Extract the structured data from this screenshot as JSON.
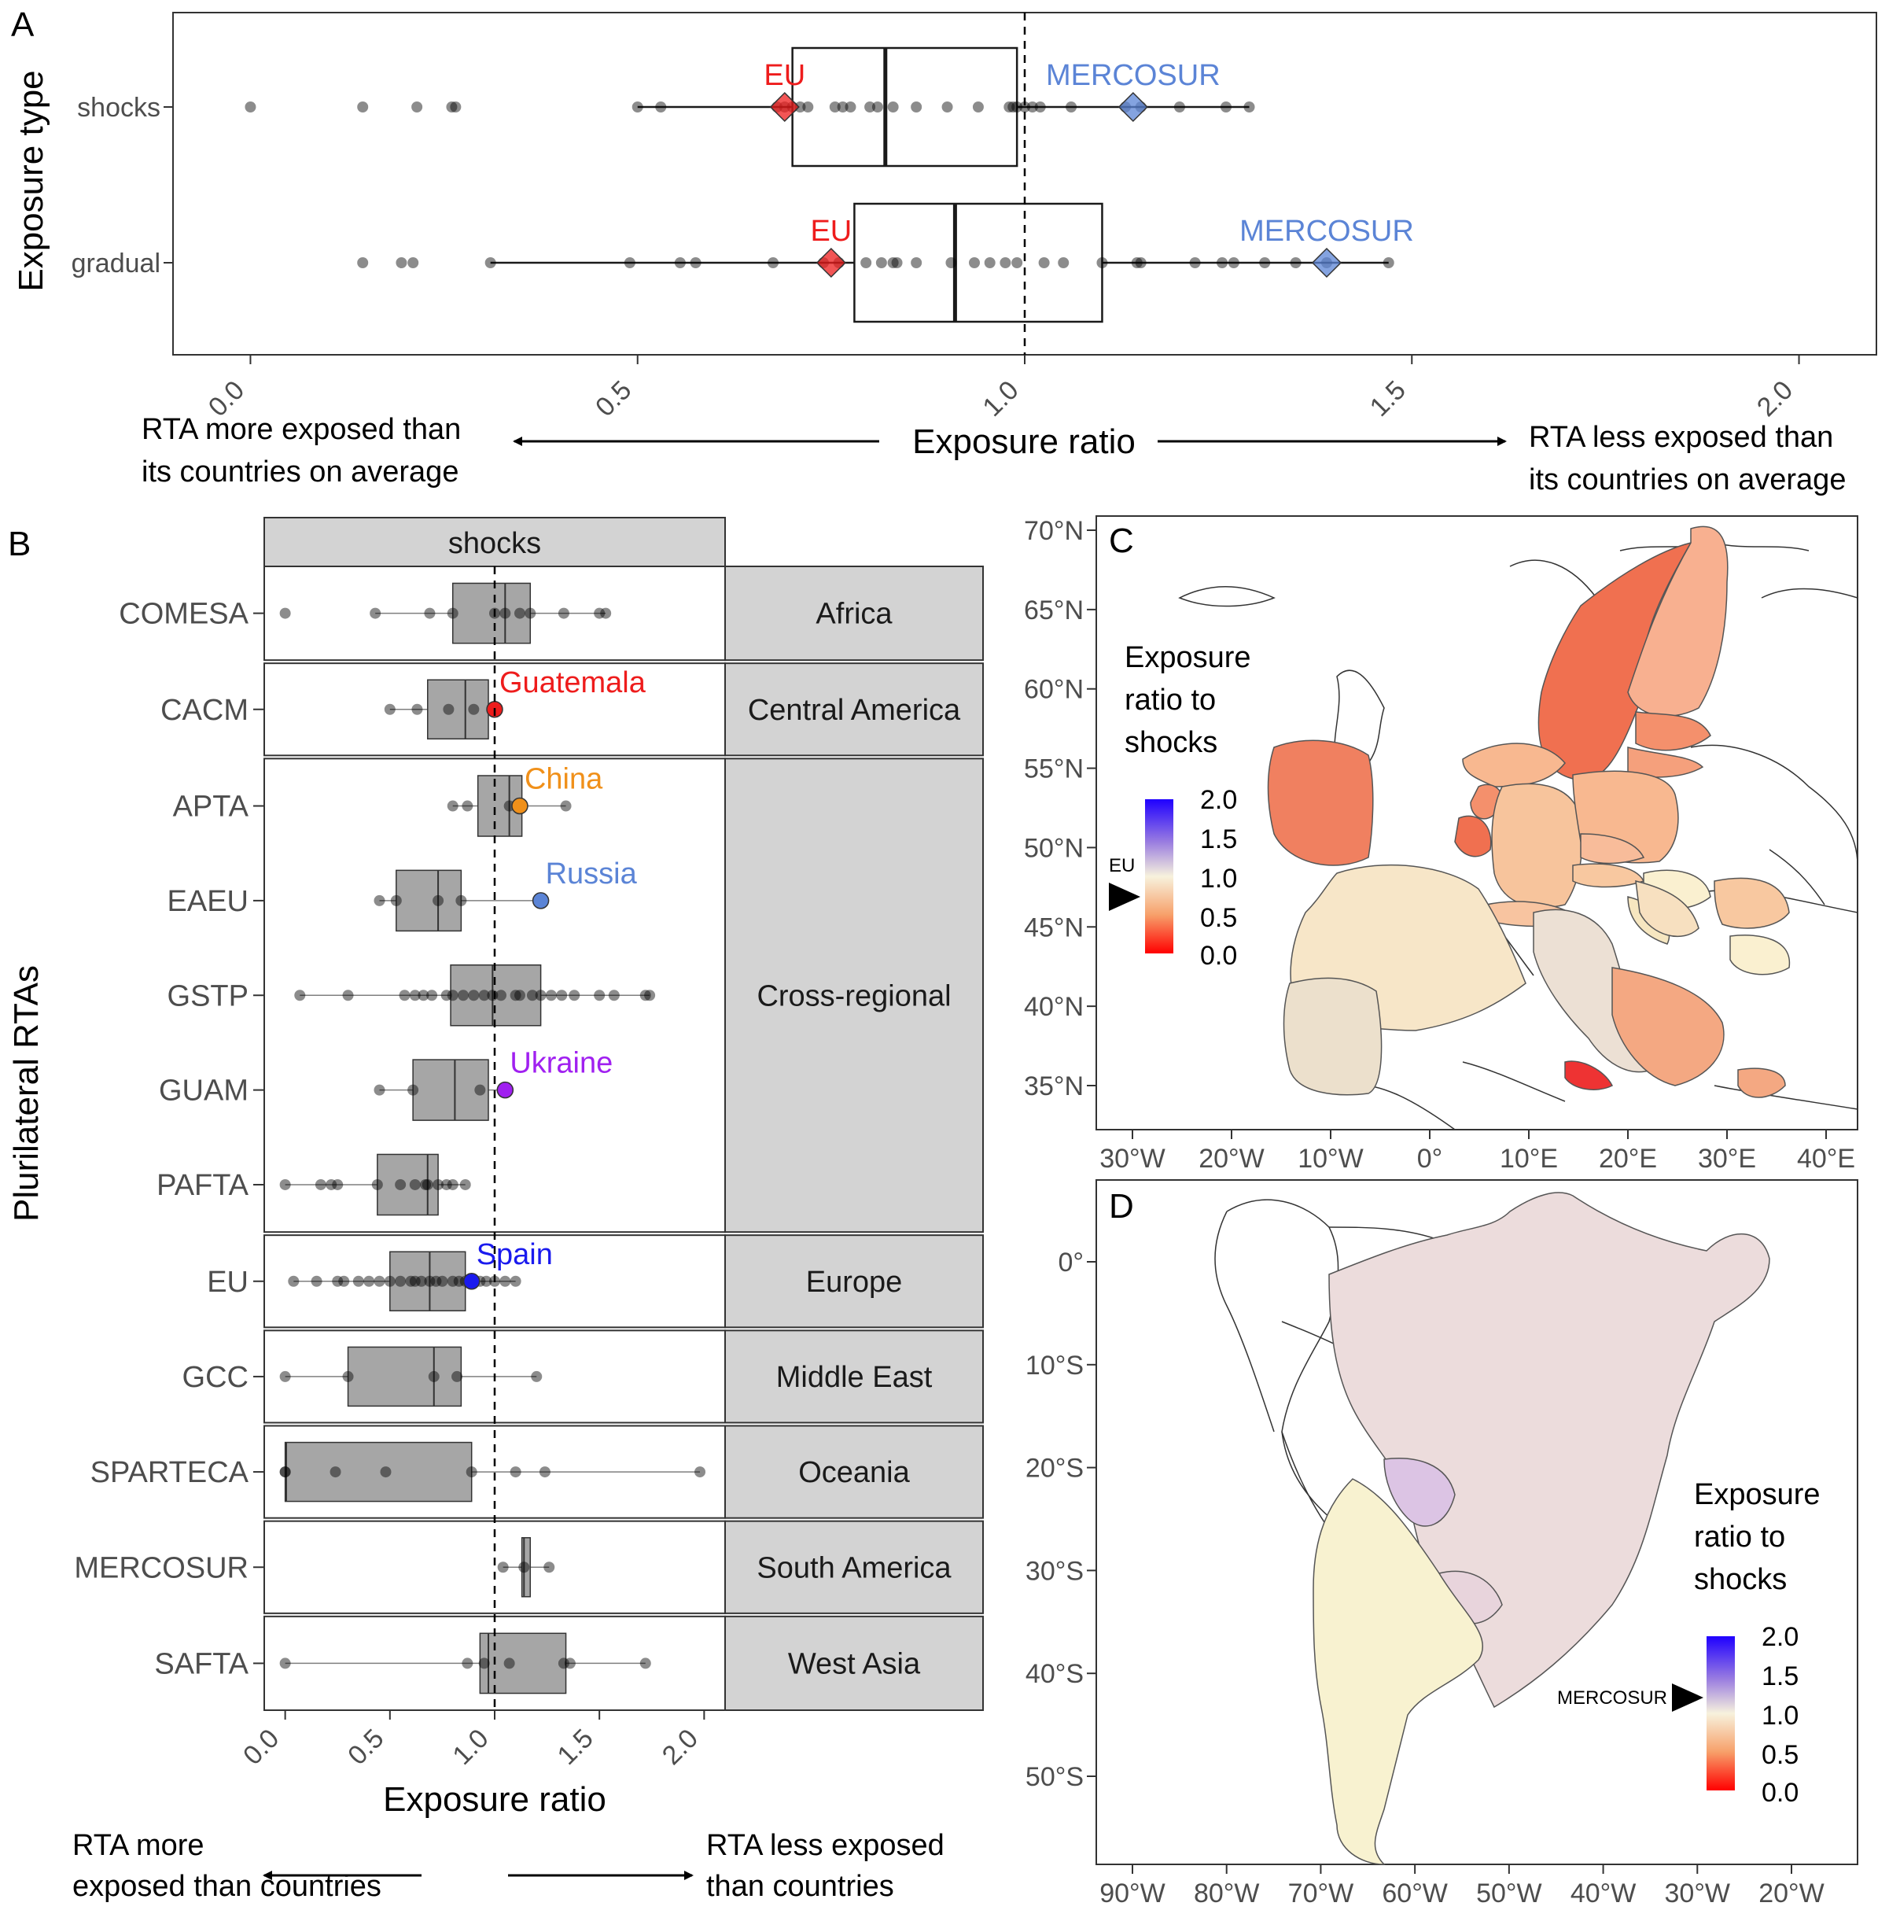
{
  "panels": {
    "a": {
      "letter": "A",
      "ylabel": "Exposure type",
      "xlabel": "Exposure ratio",
      "x_ticks": [
        "0.0",
        "0.5",
        "1.0",
        "1.5",
        "2.0"
      ],
      "left_note": [
        "RTA more exposed than",
        "its countries on average"
      ],
      "right_note": [
        "RTA less exposed than",
        "its countries on average"
      ]
    },
    "b": {
      "letter": "B",
      "ylabel": "Plurilateral RTAs",
      "xlabel": "Exposure ratio",
      "strip": "shocks",
      "x_ticks": [
        "0.0",
        "0.5",
        "1.0",
        "1.5",
        "2.0"
      ],
      "left_note": [
        "RTA more",
        "exposed than countries"
      ],
      "right_note": [
        "RTA less exposed",
        "than countries"
      ]
    },
    "c": {
      "letter": "C",
      "legend_title": [
        "Exposure",
        "ratio to",
        "shocks"
      ],
      "legend_ticks": [
        "2.0",
        "1.5",
        "1.0",
        "0.5",
        "0.0"
      ],
      "marker": "EU",
      "lat_ticks": [
        "70°N",
        "65°N",
        "60°N",
        "55°N",
        "50°N",
        "45°N",
        "40°N",
        "35°N"
      ],
      "lon_ticks": [
        "30°W",
        "20°W",
        "10°W",
        "0°",
        "10°E",
        "20°E",
        "30°E",
        "40°E"
      ]
    },
    "d": {
      "letter": "D",
      "legend_title": [
        "Exposure",
        "ratio to",
        "shocks"
      ],
      "legend_ticks": [
        "2.0",
        "1.5",
        "1.0",
        "0.5",
        "0.0"
      ],
      "marker": "MERCOSUR",
      "lat_ticks": [
        "0°",
        "10°S",
        "20°S",
        "30°S",
        "40°S",
        "50°S"
      ],
      "lon_ticks": [
        "90°W",
        "80°W",
        "70°W",
        "60°W",
        "50°W",
        "40°W",
        "30°W",
        "20°W"
      ]
    }
  },
  "colors": {
    "highlight_eu": "#ee1c1c",
    "highlight_mercosur": "#5b84d6",
    "china": "#f0901a",
    "russia": "#5b84d6",
    "ukraine": "#a020f0",
    "spain": "#1a1aee",
    "box_fill_b": "#a6a6a6",
    "strip_fill": "#d3d3d3"
  },
  "chart_data": [
    {
      "type": "scatter",
      "panel": "A",
      "xlim": [
        -0.1,
        2.1
      ],
      "xlabel": "Exposure ratio",
      "ylabel": "Exposure type",
      "reference_line": 1.0,
      "series": [
        {
          "name": "shocks",
          "box": {
            "q1": 0.7,
            "median": 0.82,
            "q3": 0.99,
            "whisker_low": 0.5,
            "whisker_high": 1.29
          },
          "points": [
            0.0,
            0.145,
            0.215,
            0.26,
            0.265,
            0.5,
            0.53,
            0.68,
            0.69,
            0.7,
            0.71,
            0.72,
            0.755,
            0.765,
            0.775,
            0.8,
            0.81,
            0.83,
            0.86,
            0.9,
            0.94,
            0.98,
            0.985,
            0.99,
            1.0,
            1.01,
            1.02,
            1.06,
            1.13,
            1.15,
            1.2,
            1.26,
            1.29
          ],
          "highlights": [
            {
              "label": "EU",
              "value": 0.69
            },
            {
              "label": "MERCOSUR",
              "value": 1.14
            }
          ]
        },
        {
          "name": "gradual",
          "box": {
            "q1": 0.78,
            "median": 0.91,
            "q3": 1.1,
            "whisker_low": 0.31,
            "whisker_high": 1.47
          },
          "points": [
            0.145,
            0.195,
            0.21,
            0.31,
            0.49,
            0.555,
            0.575,
            0.675,
            0.74,
            0.76,
            0.795,
            0.815,
            0.83,
            0.835,
            0.86,
            0.905,
            0.935,
            0.955,
            0.975,
            0.99,
            1.025,
            1.05,
            1.1,
            1.145,
            1.15,
            1.22,
            1.255,
            1.27,
            1.31,
            1.35,
            1.39,
            1.47
          ],
          "highlights": [
            {
              "label": "EU",
              "value": 0.75
            },
            {
              "label": "MERCOSUR",
              "value": 1.39
            }
          ]
        }
      ]
    },
    {
      "type": "scatter",
      "panel": "B",
      "facet": "shocks",
      "xlim": [
        -0.1,
        2.1
      ],
      "xlabel": "Exposure ratio",
      "ylabel": "Plurilateral RTAs",
      "reference_line": 1.0,
      "groups": [
        {
          "region": "Africa",
          "rtas": [
            {
              "name": "COMESA",
              "box": [
                0.8,
                1.05,
                1.17
              ],
              "whisker": [
                0.43,
                1.53
              ],
              "points": [
                0.0,
                0.43,
                0.69,
                0.8,
                1.0,
                1.05,
                1.12,
                1.17,
                1.33,
                1.5,
                1.53
              ]
            }
          ]
        },
        {
          "region": "Central America",
          "rtas": [
            {
              "name": "CACM",
              "box": [
                0.68,
                0.86,
                0.97
              ],
              "whisker": [
                0.5,
                1.0
              ],
              "points": [
                0.5,
                0.63,
                0.78,
                0.9
              ],
              "highlight": {
                "label": "Guatemala",
                "value": 1.0,
                "color": "#ee1c1c"
              }
            }
          ]
        },
        {
          "region": "Cross-regional",
          "rtas": [
            {
              "name": "APTA",
              "box": [
                0.92,
                1.07,
                1.13
              ],
              "whisker": [
                0.8,
                1.34
              ],
              "points": [
                0.8,
                0.87,
                1.07,
                1.34
              ],
              "highlight": {
                "label": "China",
                "value": 1.12,
                "color": "#f0901a"
              }
            },
            {
              "name": "EAEU",
              "box": [
                0.53,
                0.73,
                0.84
              ],
              "whisker": [
                0.45,
                1.22
              ],
              "points": [
                0.45,
                0.53,
                0.73,
                0.84
              ],
              "highlight": {
                "label": "Russia",
                "value": 1.22,
                "color": "#5b84d6"
              }
            },
            {
              "name": "GSTP",
              "box": [
                0.79,
                0.99,
                1.22
              ],
              "whisker": [
                0.07,
                1.74
              ],
              "points": [
                0.07,
                0.3,
                0.57,
                0.62,
                0.66,
                0.7,
                0.77,
                0.8,
                0.85,
                0.9,
                0.95,
                0.99,
                1.03,
                1.1,
                1.12,
                1.18,
                1.22,
                1.27,
                1.32,
                1.38,
                1.5,
                1.57,
                1.72,
                1.74
              ]
            },
            {
              "name": "GUAM",
              "box": [
                0.61,
                0.81,
                0.97
              ],
              "whisker": [
                0.45,
                1.05
              ],
              "points": [
                0.45,
                0.61,
                0.93
              ],
              "highlight": {
                "label": "Ukraine",
                "value": 1.05,
                "color": "#a020f0"
              }
            },
            {
              "name": "PAFTA",
              "box": [
                0.44,
                0.68,
                0.73
              ],
              "whisker": [
                0.0,
                0.86
              ],
              "points": [
                0.0,
                0.17,
                0.22,
                0.25,
                0.44,
                0.55,
                0.62,
                0.67,
                0.68,
                0.73,
                0.77,
                0.8,
                0.86
              ]
            }
          ]
        },
        {
          "region": "Europe",
          "rtas": [
            {
              "name": "EU",
              "box": [
                0.5,
                0.69,
                0.86
              ],
              "whisker": [
                0.04,
                1.1
              ],
              "points": [
                0.04,
                0.15,
                0.25,
                0.28,
                0.35,
                0.4,
                0.45,
                0.5,
                0.55,
                0.6,
                0.62,
                0.65,
                0.69,
                0.72,
                0.75,
                0.8,
                0.83,
                0.86,
                0.93,
                0.96,
                1.0,
                1.05,
                1.1
              ],
              "highlight": {
                "label": "Spain",
                "value": 0.89,
                "color": "#1a1aee"
              }
            }
          ]
        },
        {
          "region": "Middle East",
          "rtas": [
            {
              "name": "GCC",
              "box": [
                0.3,
                0.71,
                0.84
              ],
              "whisker": [
                0.0,
                1.2
              ],
              "points": [
                0.0,
                0.3,
                0.71,
                0.82,
                1.2
              ]
            }
          ]
        },
        {
          "region": "Oceania",
          "rtas": [
            {
              "name": "SPARTECA",
              "box": [
                0.0,
                0.005,
                0.89
              ],
              "whisker": [
                0.0,
                1.98
              ],
              "points": [
                0.0,
                0.0,
                0.24,
                0.48,
                0.89,
                1.1,
                1.24,
                1.98
              ]
            }
          ]
        },
        {
          "region": "South America",
          "rtas": [
            {
              "name": "MERCOSUR",
              "box": [
                1.13,
                1.14,
                1.17
              ],
              "whisker": [
                1.04,
                1.26
              ],
              "points": [
                1.04,
                1.14,
                1.26
              ]
            }
          ]
        },
        {
          "region": "West Asia",
          "rtas": [
            {
              "name": "SAFTA",
              "box": [
                0.93,
                0.97,
                1.34
              ],
              "whisker": [
                0.0,
                1.72
              ],
              "points": [
                0.0,
                0.87,
                0.95,
                1.07,
                1.33,
                1.36,
                1.72
              ]
            }
          ]
        }
      ]
    }
  ]
}
